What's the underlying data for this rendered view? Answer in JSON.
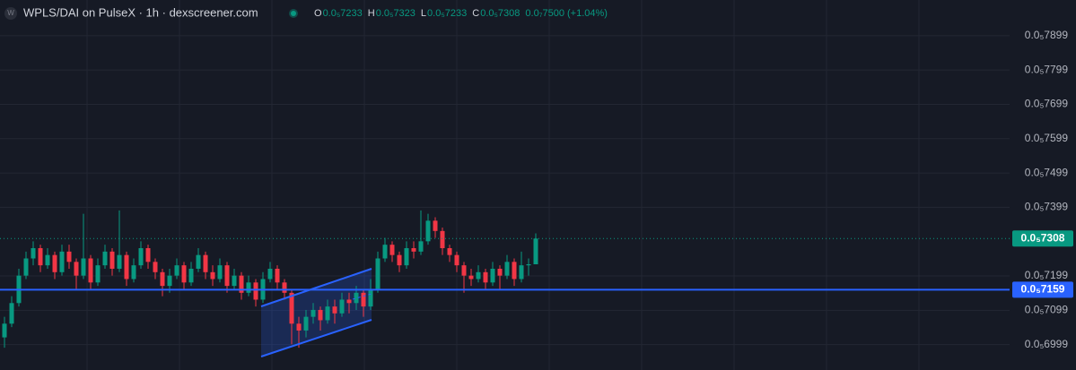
{
  "chart_data": {
    "type": "candlestick",
    "header": {
      "icon": "W",
      "title": "WPLS/DAI on PulseX · 1h · dexscreener.com",
      "ohlc": [
        {
          "key": "O",
          "text": "0.0₅7233"
        },
        {
          "key": "H",
          "text": "0.0₅7323"
        },
        {
          "key": "L",
          "text": "0.0₅7233"
        },
        {
          "key": "C",
          "text": "0.0₅7308"
        }
      ],
      "change": "0.0₇7500 (+1.04%)"
    },
    "ylim": [
      6.925e-06,
      8.003e-06
    ],
    "yticks": [
      {
        "value": 7.899e-06,
        "label": "0.0₅7899"
      },
      {
        "value": 7.799e-06,
        "label": "0.0₅7799"
      },
      {
        "value": 7.699e-06,
        "label": "0.0₅7699"
      },
      {
        "value": 7.599e-06,
        "label": "0.0₅7599"
      },
      {
        "value": 7.499e-06,
        "label": "0.0₅7499"
      },
      {
        "value": 7.399e-06,
        "label": "0.0₅7399"
      },
      {
        "value": 7.199e-06,
        "label": "0.0₅7199"
      },
      {
        "value": 7.099e-06,
        "label": "0.0₅7099"
      },
      {
        "value": 6.999e-06,
        "label": "0.0₅6999"
      }
    ],
    "last_price": {
      "value": 7.308e-06,
      "label": "0.0₅7308",
      "color": "#089981"
    },
    "horizontal_line": {
      "value": 7.159e-06,
      "label": "0.0₅7159",
      "color": "#2962ff"
    },
    "up_color": "#089981",
    "down_color": "#f23645",
    "grid": true,
    "open": [
      7.02e-06,
      7.06e-06,
      7.12e-06,
      7.2e-06,
      7.25e-06,
      7.28e-06,
      7.23e-06,
      7.26e-06,
      7.21e-06,
      7.27e-06,
      7.24e-06,
      7.2e-06,
      7.25e-06,
      7.18e-06,
      7.23e-06,
      7.27e-06,
      7.22e-06,
      7.26e-06,
      7.19e-06,
      7.23e-06,
      7.28e-06,
      7.24e-06,
      7.21e-06,
      7.17e-06,
      7.2e-06,
      7.23e-06,
      7.18e-06,
      7.22e-06,
      7.26e-06,
      7.21e-06,
      7.19e-06,
      7.23e-06,
      7.17e-06,
      7.2e-06,
      7.15e-06,
      7.18e-06,
      7.13e-06,
      7.19e-06,
      7.22e-06,
      7.18e-06,
      7.15e-06,
      7.06e-06,
      7.04e-06,
      7.08e-06,
      7.1e-06,
      7.07e-06,
      7.11e-06,
      7.09e-06,
      7.13e-06,
      7.12e-06,
      7.15e-06,
      7.11e-06,
      7.16e-06,
      7.25e-06,
      7.29e-06,
      7.26e-06,
      7.23e-06,
      7.28e-06,
      7.27e-06,
      7.3e-06,
      7.36e-06,
      7.33e-06,
      7.28e-06,
      7.26e-06,
      7.23e-06,
      7.2e-06,
      7.19e-06,
      7.21e-06,
      7.18e-06,
      7.22e-06,
      7.2e-06,
      7.24e-06,
      7.19e-06,
      7.23e-06,
      7.233e-06
    ],
    "high": [
      7.08e-06,
      7.14e-06,
      7.22e-06,
      7.27e-06,
      7.3e-06,
      7.29e-06,
      7.28e-06,
      7.27e-06,
      7.29e-06,
      7.29e-06,
      7.25e-06,
      7.38e-06,
      7.26e-06,
      7.25e-06,
      7.29e-06,
      7.28e-06,
      7.39e-06,
      7.27e-06,
      7.25e-06,
      7.3e-06,
      7.29e-06,
      7.25e-06,
      7.22e-06,
      7.22e-06,
      7.25e-06,
      7.24e-06,
      7.24e-06,
      7.28e-06,
      7.27e-06,
      7.23e-06,
      7.25e-06,
      7.24e-06,
      7.22e-06,
      7.21e-06,
      7.2e-06,
      7.19e-06,
      7.21e-06,
      7.24e-06,
      7.23e-06,
      7.19e-06,
      7.16e-06,
      7.08e-06,
      7.1e-06,
      7.12e-06,
      7.11e-06,
      7.13e-06,
      7.13e-06,
      7.15e-06,
      7.15e-06,
      7.17e-06,
      7.16e-06,
      7.19e-06,
      7.27e-06,
      7.31e-06,
      7.3e-06,
      7.27e-06,
      7.3e-06,
      7.3e-06,
      7.39e-06,
      7.38e-06,
      7.37e-06,
      7.34e-06,
      7.29e-06,
      7.27e-06,
      7.24e-06,
      7.22e-06,
      7.23e-06,
      7.22e-06,
      7.24e-06,
      7.23e-06,
      7.26e-06,
      7.25e-06,
      7.27e-06,
      7.25e-06,
      7.323e-06
    ],
    "low": [
      6.99e-06,
      7.05e-06,
      7.11e-06,
      7.19e-06,
      7.23e-06,
      7.21e-06,
      7.22e-06,
      7.19e-06,
      7.2e-06,
      7.22e-06,
      7.16e-06,
      7.19e-06,
      7.16e-06,
      7.17e-06,
      7.22e-06,
      7.2e-06,
      7.21e-06,
      7.17e-06,
      7.18e-06,
      7.22e-06,
      7.22e-06,
      7.19e-06,
      7.14e-06,
      7.15e-06,
      7.19e-06,
      7.16e-06,
      7.17e-06,
      7.21e-06,
      7.19e-06,
      7.17e-06,
      7.18e-06,
      7.15e-06,
      7.16e-06,
      7.13e-06,
      7.14e-06,
      7.11e-06,
      7.12e-06,
      7.18e-06,
      7.16e-06,
      7.13e-06,
      7e-06,
      6.99e-06,
      7.02e-06,
      7.06e-06,
      7.04e-06,
      7.06e-06,
      7.06e-06,
      7.08e-06,
      7.09e-06,
      7.1e-06,
      7.08e-06,
      7.1e-06,
      7.15e-06,
      7.24e-06,
      7.24e-06,
      7.21e-06,
      7.22e-06,
      7.25e-06,
      7.26e-06,
      7.29e-06,
      7.31e-06,
      7.26e-06,
      7.24e-06,
      7.21e-06,
      7.15e-06,
      7.17e-06,
      7.18e-06,
      7.16e-06,
      7.17e-06,
      7.16e-06,
      7.19e-06,
      7.17e-06,
      7.18e-06,
      7.2e-06,
      7.233e-06
    ],
    "close": [
      7.06e-06,
      7.12e-06,
      7.2e-06,
      7.25e-06,
      7.28e-06,
      7.23e-06,
      7.26e-06,
      7.21e-06,
      7.27e-06,
      7.24e-06,
      7.2e-06,
      7.25e-06,
      7.18e-06,
      7.23e-06,
      7.27e-06,
      7.22e-06,
      7.26e-06,
      7.19e-06,
      7.23e-06,
      7.28e-06,
      7.24e-06,
      7.21e-06,
      7.17e-06,
      7.2e-06,
      7.23e-06,
      7.18e-06,
      7.22e-06,
      7.26e-06,
      7.21e-06,
      7.19e-06,
      7.23e-06,
      7.17e-06,
      7.2e-06,
      7.15e-06,
      7.18e-06,
      7.13e-06,
      7.19e-06,
      7.22e-06,
      7.18e-06,
      7.15e-06,
      7.06e-06,
      7.04e-06,
      7.08e-06,
      7.1e-06,
      7.07e-06,
      7.11e-06,
      7.09e-06,
      7.13e-06,
      7.12e-06,
      7.15e-06,
      7.11e-06,
      7.16e-06,
      7.25e-06,
      7.29e-06,
      7.26e-06,
      7.23e-06,
      7.28e-06,
      7.27e-06,
      7.3e-06,
      7.36e-06,
      7.33e-06,
      7.28e-06,
      7.26e-06,
      7.23e-06,
      7.2e-06,
      7.19e-06,
      7.21e-06,
      7.18e-06,
      7.22e-06,
      7.2e-06,
      7.24e-06,
      7.19e-06,
      7.23e-06,
      7.233e-06,
      7.308e-06
    ]
  }
}
